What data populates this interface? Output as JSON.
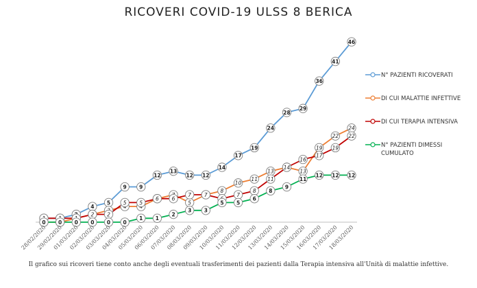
{
  "title": "RICOVERI COVID-19 ULSS 8 BERICA",
  "note": "Il grafico sui ricoveri tiene conto anche degli eventuali trasferimenti dei pazienti dalla Terapia intensiva all'Unità di malattie infettive.",
  "chart_data": {
    "type": "line",
    "title": "RICOVERI COVID-19 ULSS 8 BERICA",
    "xlabel": "",
    "ylabel": "",
    "ylim": [
      0,
      46
    ],
    "grid": false,
    "legend_position": "right",
    "categories": [
      "28/02/2020",
      "29/02/2020",
      "01/03/2020",
      "02/03/2020",
      "03/03/2020",
      "04/03/2020",
      "05/03/2020",
      "06/03/2020",
      "07/03/2020",
      "08/03/2020",
      "09/03/2020",
      "10/03/2020",
      "11/03/2020",
      "12/03/2020",
      "13/03/2020",
      "14/03/2020",
      "15/03/2020",
      "16/03/2020",
      "17/03/2020",
      "18/03/2020"
    ],
    "series": [
      {
        "name": "N° PAZIENTI RICOVERATI",
        "color": "#5b9bd5",
        "label_style": "normal",
        "values": [
          1,
          1,
          2,
          4,
          5,
          9,
          9,
          12,
          13,
          12,
          12,
          14,
          17,
          19,
          24,
          28,
          29,
          36,
          41,
          46
        ]
      },
      {
        "name": "DI CUI MALATTIE INFETTIVE",
        "color": "#ed7d31",
        "label_style": "italic",
        "values": [
          0,
          0,
          1,
          2,
          3,
          4,
          4,
          6,
          7,
          5,
          7,
          8,
          10,
          11,
          13,
          14,
          13,
          19,
          22,
          24
        ]
      },
      {
        "name": "DI CUI TERAPIA INTENSIVA",
        "color": "#c00000",
        "label_style": "italic",
        "values": [
          1,
          1,
          1,
          2,
          2,
          5,
          5,
          6,
          6,
          7,
          7,
          6,
          7,
          8,
          11,
          14,
          16,
          17,
          19,
          22
        ]
      },
      {
        "name": "N° PAZIENTI DIMESSI CUMULATO",
        "color": "#00b050",
        "label_style": "normal",
        "values": [
          0,
          0,
          0,
          0,
          0,
          0,
          1,
          1,
          2,
          3,
          3,
          5,
          5,
          6,
          8,
          9,
          11,
          12,
          12,
          12
        ]
      }
    ],
    "legend": [
      {
        "label": "N° PAZIENTI RICOVERATI",
        "color": "#5b9bd5"
      },
      {
        "label": "DI CUI MALATTIE INFETTIVE",
        "color": "#ed7d31"
      },
      {
        "label": "DI CUI TERAPIA INTENSIVA",
        "color": "#c00000"
      },
      {
        "label": "N° PAZIENTI DIMESSI CUMULATO",
        "color": "#00b050"
      }
    ]
  }
}
